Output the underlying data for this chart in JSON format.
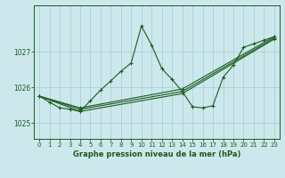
{
  "title": "Graphe pression niveau de la mer (hPa)",
  "background_color": "#cde8ec",
  "grid_color": "#9ecdd4",
  "line_color": "#1a5c1a",
  "xlim": [
    -0.5,
    23.5
  ],
  "ylim": [
    1024.55,
    1028.3
  ],
  "yticks": [
    1025,
    1026,
    1027
  ],
  "xticks": [
    0,
    1,
    2,
    3,
    4,
    5,
    6,
    7,
    8,
    9,
    10,
    11,
    12,
    13,
    14,
    15,
    16,
    17,
    18,
    19,
    20,
    21,
    22,
    23
  ],
  "series1": {
    "x": [
      0,
      1,
      2,
      3,
      4,
      5,
      6,
      7,
      8,
      9,
      10,
      11,
      12,
      13,
      14,
      15,
      16,
      17,
      18,
      19,
      20,
      21,
      22,
      23
    ],
    "y": [
      1025.75,
      1025.58,
      1025.42,
      1025.38,
      1025.32,
      1025.62,
      1025.92,
      1026.18,
      1026.45,
      1026.68,
      1027.72,
      1027.18,
      1026.52,
      1026.22,
      1025.88,
      1025.45,
      1025.42,
      1025.48,
      1026.28,
      1026.62,
      1027.12,
      1027.22,
      1027.32,
      1027.42
    ]
  },
  "series2": {
    "x": [
      0,
      4,
      14,
      23
    ],
    "y": [
      1025.75,
      1025.42,
      1025.95,
      1027.42
    ]
  },
  "series3": {
    "x": [
      0,
      4,
      14,
      23
    ],
    "y": [
      1025.75,
      1025.38,
      1025.88,
      1027.38
    ]
  },
  "series4": {
    "x": [
      0,
      4,
      14,
      23
    ],
    "y": [
      1025.75,
      1025.32,
      1025.82,
      1027.35
    ]
  }
}
